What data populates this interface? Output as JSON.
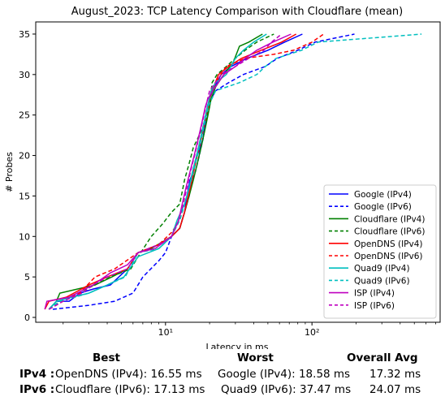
{
  "chart_data": {
    "type": "line",
    "title": "August_2023: TCP Latency Comparison with Cloudflare (mean)",
    "xlabel": "Latency in ms",
    "ylabel": "# Probes",
    "xscale": "log",
    "xlim": [
      1.3,
      750
    ],
    "ylim": [
      -0.6,
      36.5
    ],
    "xticks": [
      {
        "value": 10,
        "label": "10¹"
      },
      {
        "value": 100,
        "label": "10²"
      }
    ],
    "yticks": [
      0,
      5,
      10,
      15,
      20,
      25,
      30,
      35
    ],
    "grid": false,
    "legend_position": "lower-right",
    "series": [
      {
        "name": "Google (IPv4)",
        "color": "#0000ff",
        "dash": "solid",
        "points": [
          [
            1.6,
            1
          ],
          [
            1.8,
            2
          ],
          [
            2.2,
            2
          ],
          [
            2.6,
            3
          ],
          [
            3.2,
            3.5
          ],
          [
            4.2,
            4
          ],
          [
            5.5,
            6
          ],
          [
            6.5,
            8
          ],
          [
            9,
            9
          ],
          [
            11,
            10
          ],
          [
            12.5,
            11
          ],
          [
            13.5,
            13
          ],
          [
            14,
            15
          ],
          [
            14.7,
            17
          ],
          [
            15.5,
            18
          ],
          [
            16.5,
            20
          ],
          [
            17.3,
            21
          ],
          [
            18,
            22
          ],
          [
            18.7,
            24
          ],
          [
            19.3,
            26
          ],
          [
            20,
            27
          ],
          [
            21,
            28
          ],
          [
            24,
            30
          ],
          [
            28,
            31
          ],
          [
            36,
            32
          ],
          [
            50,
            33
          ],
          [
            65,
            34
          ],
          [
            86,
            35
          ]
        ]
      },
      {
        "name": "Google (IPv6)",
        "color": "#0000ff",
        "dash": "dashed",
        "points": [
          [
            1.7,
            1
          ],
          [
            3,
            1.5
          ],
          [
            4.5,
            2
          ],
          [
            6,
            3
          ],
          [
            7,
            5
          ],
          [
            9,
            7
          ],
          [
            10,
            8
          ],
          [
            11,
            10
          ],
          [
            12.5,
            11
          ],
          [
            13.5,
            13
          ],
          [
            14.5,
            15
          ],
          [
            15.3,
            17
          ],
          [
            16,
            18
          ],
          [
            17,
            20
          ],
          [
            18,
            22
          ],
          [
            18.8,
            24
          ],
          [
            19.5,
            26
          ],
          [
            20.5,
            27
          ],
          [
            22,
            28
          ],
          [
            27,
            29
          ],
          [
            34,
            30
          ],
          [
            48,
            31
          ],
          [
            58,
            32
          ],
          [
            80,
            33
          ],
          [
            105,
            34
          ],
          [
            195,
            35
          ]
        ]
      },
      {
        "name": "Cloudflare (IPv4)",
        "color": "#008000",
        "dash": "solid",
        "points": [
          [
            1.6,
            1
          ],
          [
            1.8,
            2
          ],
          [
            1.9,
            3
          ],
          [
            2.5,
            3.5
          ],
          [
            3.3,
            4
          ],
          [
            4.3,
            5
          ],
          [
            5.5,
            6
          ],
          [
            6.5,
            8
          ],
          [
            8,
            8.5
          ],
          [
            11,
            10
          ],
          [
            12.5,
            11
          ],
          [
            13.5,
            13
          ],
          [
            14.5,
            15
          ],
          [
            15.5,
            17
          ],
          [
            16.5,
            19
          ],
          [
            17.5,
            21
          ],
          [
            18.5,
            23
          ],
          [
            19.5,
            25
          ],
          [
            20.5,
            27
          ],
          [
            22,
            28.5
          ],
          [
            25,
            30
          ],
          [
            29,
            31.5
          ],
          [
            32,
            33.5
          ],
          [
            37,
            34
          ],
          [
            46,
            35
          ]
        ]
      },
      {
        "name": "Cloudflare (IPv6)",
        "color": "#008000",
        "dash": "dashed",
        "points": [
          [
            1.6,
            1
          ],
          [
            1.9,
            2
          ],
          [
            2.5,
            3
          ],
          [
            3.3,
            4
          ],
          [
            4.2,
            5
          ],
          [
            5.8,
            6
          ],
          [
            6.5,
            7.5
          ],
          [
            8,
            10
          ],
          [
            9.5,
            11.5
          ],
          [
            11,
            13
          ],
          [
            12.5,
            14
          ],
          [
            13.5,
            17
          ],
          [
            14.5,
            19
          ],
          [
            15.5,
            21
          ],
          [
            16.5,
            22
          ],
          [
            17.5,
            23
          ],
          [
            18.5,
            24
          ],
          [
            19.3,
            25
          ],
          [
            20,
            26
          ],
          [
            20.8,
            29
          ],
          [
            22.5,
            30
          ],
          [
            26,
            31
          ],
          [
            30,
            32
          ],
          [
            35,
            33
          ],
          [
            42,
            34
          ],
          [
            55,
            35
          ]
        ]
      },
      {
        "name": "OpenDNS (IPv4)",
        "color": "#ff0000",
        "dash": "solid",
        "points": [
          [
            1.5,
            1
          ],
          [
            1.6,
            2
          ],
          [
            2.1,
            2.5
          ],
          [
            3,
            4
          ],
          [
            4,
            5
          ],
          [
            5.5,
            6
          ],
          [
            6.5,
            8
          ],
          [
            9,
            9
          ],
          [
            11,
            10
          ],
          [
            12.5,
            11
          ],
          [
            13.5,
            13
          ],
          [
            14.3,
            15
          ],
          [
            15.2,
            17
          ],
          [
            16,
            19
          ],
          [
            17,
            21
          ],
          [
            18,
            23
          ],
          [
            19,
            25
          ],
          [
            20,
            27
          ],
          [
            20.8,
            28
          ],
          [
            23,
            30
          ],
          [
            27,
            31
          ],
          [
            33,
            32
          ],
          [
            45,
            33
          ],
          [
            62,
            34
          ],
          [
            78,
            35
          ]
        ]
      },
      {
        "name": "OpenDNS (IPv6)",
        "color": "#ff0000",
        "dash": "dashed",
        "points": [
          [
            1.6,
            1
          ],
          [
            2,
            2
          ],
          [
            2.6,
            3
          ],
          [
            3.3,
            5
          ],
          [
            4.5,
            6
          ],
          [
            6.5,
            8
          ],
          [
            9,
            9
          ],
          [
            11,
            10.5
          ],
          [
            12.5,
            12
          ],
          [
            13.5,
            14
          ],
          [
            14.5,
            16
          ],
          [
            15.3,
            18
          ],
          [
            16.3,
            20
          ],
          [
            17.3,
            22
          ],
          [
            18.3,
            24
          ],
          [
            19.3,
            26
          ],
          [
            20.3,
            27.5
          ],
          [
            22,
            29
          ],
          [
            26,
            31
          ],
          [
            35,
            32
          ],
          [
            55,
            32.5
          ],
          [
            75,
            33
          ],
          [
            100,
            34
          ],
          [
            120,
            35
          ]
        ]
      },
      {
        "name": "Quad9 (IPv4)",
        "color": "#00bfbf",
        "dash": "solid",
        "points": [
          [
            1.6,
            1
          ],
          [
            1.8,
            2
          ],
          [
            2.3,
            2.5
          ],
          [
            3,
            3
          ],
          [
            4,
            4
          ],
          [
            5.2,
            5
          ],
          [
            6.5,
            7.5
          ],
          [
            9,
            8.5
          ],
          [
            11,
            10
          ],
          [
            12,
            12
          ],
          [
            13.5,
            14
          ],
          [
            14.5,
            16
          ],
          [
            15.3,
            18
          ],
          [
            16.3,
            20
          ],
          [
            17.3,
            22
          ],
          [
            18.3,
            24
          ],
          [
            19.3,
            26
          ],
          [
            20.5,
            28
          ],
          [
            22,
            29
          ],
          [
            26,
            30
          ],
          [
            30,
            32
          ],
          [
            34,
            33
          ],
          [
            40,
            34
          ],
          [
            49,
            35
          ]
        ]
      },
      {
        "name": "Quad9 (IPv6)",
        "color": "#00bfbf",
        "dash": "dashed",
        "points": [
          [
            1.6,
            1
          ],
          [
            1.9,
            2
          ],
          [
            2.4,
            2.5
          ],
          [
            3,
            3
          ],
          [
            4,
            4
          ],
          [
            5.3,
            5
          ],
          [
            6.5,
            8
          ],
          [
            9,
            8.5
          ],
          [
            11,
            10
          ],
          [
            12.5,
            12
          ],
          [
            13.5,
            14
          ],
          [
            14.5,
            16
          ],
          [
            15.5,
            18
          ],
          [
            16.5,
            20
          ],
          [
            17.5,
            22
          ],
          [
            18.5,
            24
          ],
          [
            19.5,
            26
          ],
          [
            22,
            28
          ],
          [
            32,
            29
          ],
          [
            42,
            30
          ],
          [
            48,
            31
          ],
          [
            57,
            32
          ],
          [
            85,
            33
          ],
          [
            110,
            34
          ],
          [
            560,
            35
          ]
        ]
      },
      {
        "name": "ISP (IPv4)",
        "color": "#bf00bf",
        "dash": "solid",
        "points": [
          [
            1.5,
            1
          ],
          [
            1.55,
            2
          ],
          [
            2.2,
            2.5
          ],
          [
            3.2,
            4
          ],
          [
            4.2,
            5.5
          ],
          [
            5.5,
            6.5
          ],
          [
            6.5,
            8
          ],
          [
            8.5,
            8.5
          ],
          [
            11,
            10
          ],
          [
            12.3,
            12
          ],
          [
            13,
            14
          ],
          [
            13.8,
            16
          ],
          [
            14.7,
            18
          ],
          [
            15.7,
            20
          ],
          [
            16.7,
            22
          ],
          [
            17.7,
            24
          ],
          [
            18.7,
            26
          ],
          [
            19.5,
            27
          ],
          [
            21,
            28
          ],
          [
            25,
            30
          ],
          [
            30,
            31
          ],
          [
            35,
            32
          ],
          [
            42,
            33
          ],
          [
            54,
            34
          ],
          [
            72,
            35
          ]
        ]
      },
      {
        "name": "ISP (IPv6)",
        "color": "#bf00bf",
        "dash": "dashed",
        "points": [
          [
            1.6,
            1
          ],
          [
            2,
            2
          ],
          [
            2.7,
            3
          ],
          [
            3.2,
            4
          ],
          [
            4,
            5
          ],
          [
            5.5,
            6
          ],
          [
            6.5,
            8
          ],
          [
            9,
            9
          ],
          [
            11,
            10
          ],
          [
            12.3,
            12
          ],
          [
            13.2,
            14
          ],
          [
            14,
            16
          ],
          [
            14.8,
            18
          ],
          [
            15.8,
            20
          ],
          [
            16.8,
            22
          ],
          [
            17.8,
            24
          ],
          [
            18.8,
            26
          ],
          [
            20,
            28
          ],
          [
            24,
            30
          ],
          [
            30,
            31
          ],
          [
            37,
            32
          ],
          [
            47,
            33
          ],
          [
            53,
            34
          ],
          [
            62,
            35
          ]
        ]
      }
    ]
  },
  "summary": {
    "headers": {
      "best": "Best",
      "worst": "Worst",
      "avg": "Overall Avg"
    },
    "rows": [
      {
        "label": "IPv4 :",
        "best": "OpenDNS (IPv4): 16.55 ms",
        "worst": "Google (IPv4): 18.58 ms",
        "avg": "17.32 ms"
      },
      {
        "label": "IPv6 :",
        "best": "Cloudflare (IPv6): 17.13 ms",
        "worst": "Quad9 (IPv6): 37.47 ms",
        "avg": "24.07 ms"
      }
    ]
  }
}
